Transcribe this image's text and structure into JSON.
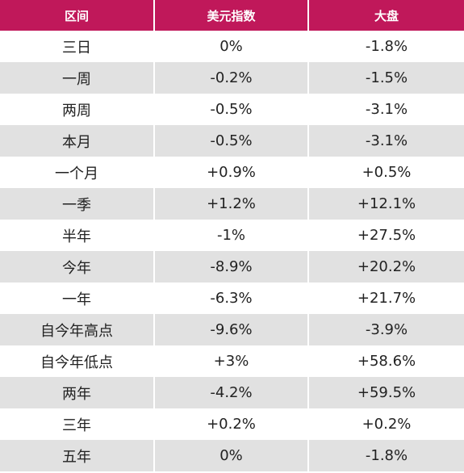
{
  "header": {
    "col1": "区间",
    "col2": "美元指数",
    "col3": "大盘"
  },
  "colors": {
    "header_bg": "#c0185a",
    "positive": "#e8141c",
    "negative": "#1f8a25",
    "neutral": "#111111",
    "alt_row_bg": "#e1e1e1"
  },
  "rows": [
    {
      "period": "三日",
      "usd_index": "0%",
      "market": "-1.8%"
    },
    {
      "period": "一周",
      "usd_index": "-0.2%",
      "market": "-1.5%"
    },
    {
      "period": "两周",
      "usd_index": "-0.5%",
      "market": "-3.1%"
    },
    {
      "period": "本月",
      "usd_index": "-0.5%",
      "market": "-3.1%"
    },
    {
      "period": "一个月",
      "usd_index": "+0.9%",
      "market": "+0.5%"
    },
    {
      "period": "一季",
      "usd_index": "+1.2%",
      "market": "+12.1%"
    },
    {
      "period": "半年",
      "usd_index": "-1%",
      "market": "+27.5%"
    },
    {
      "period": "今年",
      "usd_index": "-8.9%",
      "market": "+20.2%"
    },
    {
      "period": "一年",
      "usd_index": "-6.3%",
      "market": "+21.7%"
    },
    {
      "period": "自今年高点",
      "usd_index": "-9.6%",
      "market": "-3.9%"
    },
    {
      "period": "自今年低点",
      "usd_index": "+3%",
      "market": "+58.6%"
    },
    {
      "period": "两年",
      "usd_index": "-4.2%",
      "market": "+59.5%"
    },
    {
      "period": "三年",
      "usd_index": "+0.2%",
      "market": "+0.2%"
    },
    {
      "period": "五年",
      "usd_index": "0%",
      "market": "-1.8%"
    }
  ]
}
